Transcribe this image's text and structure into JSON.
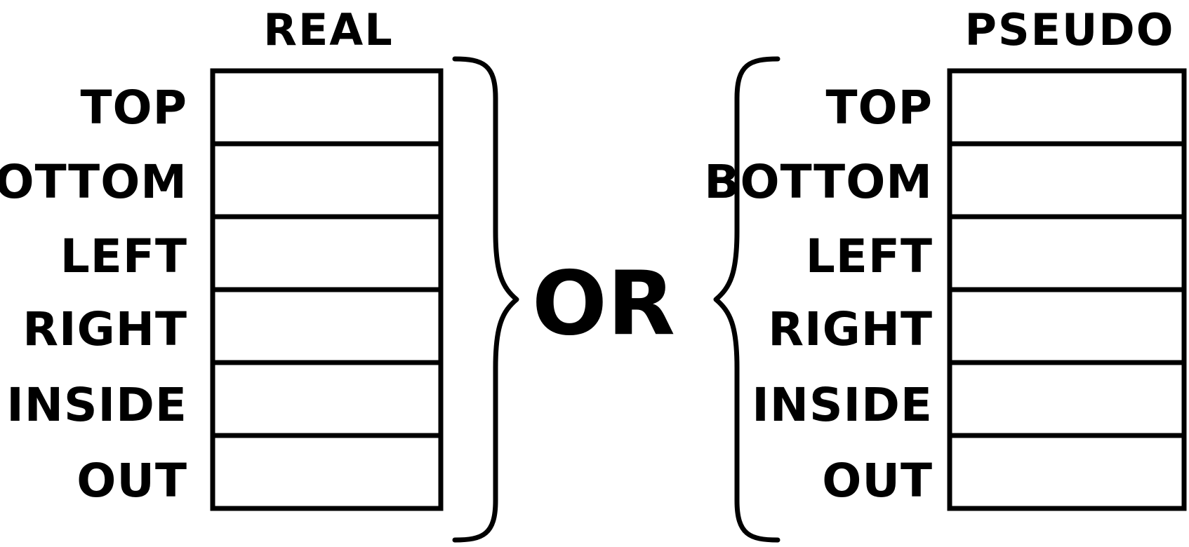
{
  "diagram": {
    "left_panel": {
      "title": "REAL",
      "fields": [
        {
          "label": "TOP"
        },
        {
          "label": "BOTTOM"
        },
        {
          "label": "LEFT"
        },
        {
          "label": "RIGHT"
        },
        {
          "label": "INSIDE"
        },
        {
          "label": "OUT"
        }
      ]
    },
    "connector": {
      "label": "OR"
    },
    "right_panel": {
      "title": "PSEUDO",
      "fields": [
        {
          "label": "TOP"
        },
        {
          "label": "BOTTOM"
        },
        {
          "label": "LEFT"
        },
        {
          "label": "RIGHT"
        },
        {
          "label": "INSIDE"
        },
        {
          "label": "OUT"
        }
      ]
    }
  }
}
